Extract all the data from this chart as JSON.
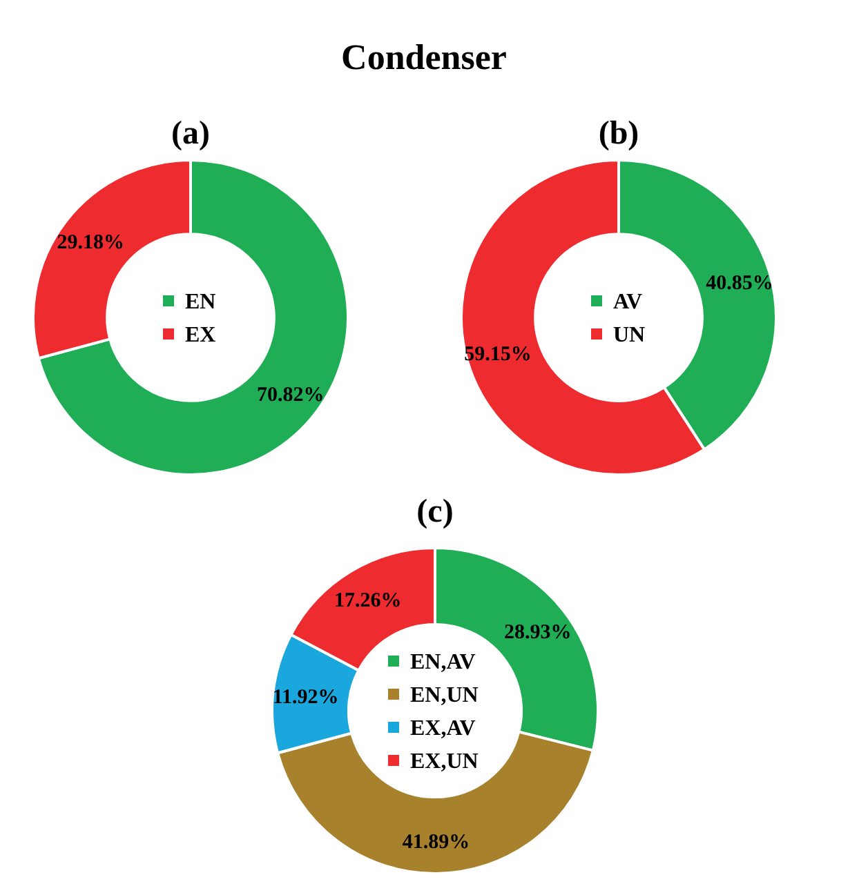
{
  "chart_data": [
    {
      "type": "donut",
      "title": "(a)",
      "annotations": [
        "Condenser"
      ],
      "categories": [
        "EN",
        "EX"
      ],
      "values": [
        70.82,
        29.18
      ],
      "value_labels": [
        "70.82%",
        "29.18%"
      ],
      "colors": [
        "#1fad55",
        "#ee2b2f"
      ],
      "legend": "center"
    },
    {
      "type": "donut",
      "title": "(b)",
      "categories": [
        "AV",
        "UN"
      ],
      "values": [
        40.85,
        59.15
      ],
      "value_labels": [
        "40.85%",
        "59.15%"
      ],
      "colors": [
        "#1fad55",
        "#ee2b2f"
      ],
      "legend": "center"
    },
    {
      "type": "donut",
      "title": "(c)",
      "categories": [
        "EN,AV",
        "EN,UN",
        "EX,AV",
        "EX,UN"
      ],
      "values": [
        28.93,
        41.89,
        11.92,
        17.26
      ],
      "value_labels": [
        "28.93%",
        "41.89%",
        "11.92%",
        "17.26%"
      ],
      "colors": [
        "#1fad55",
        "#a8812d",
        "#19a7dd",
        "#ee2b2f"
      ],
      "legend": "center"
    }
  ]
}
